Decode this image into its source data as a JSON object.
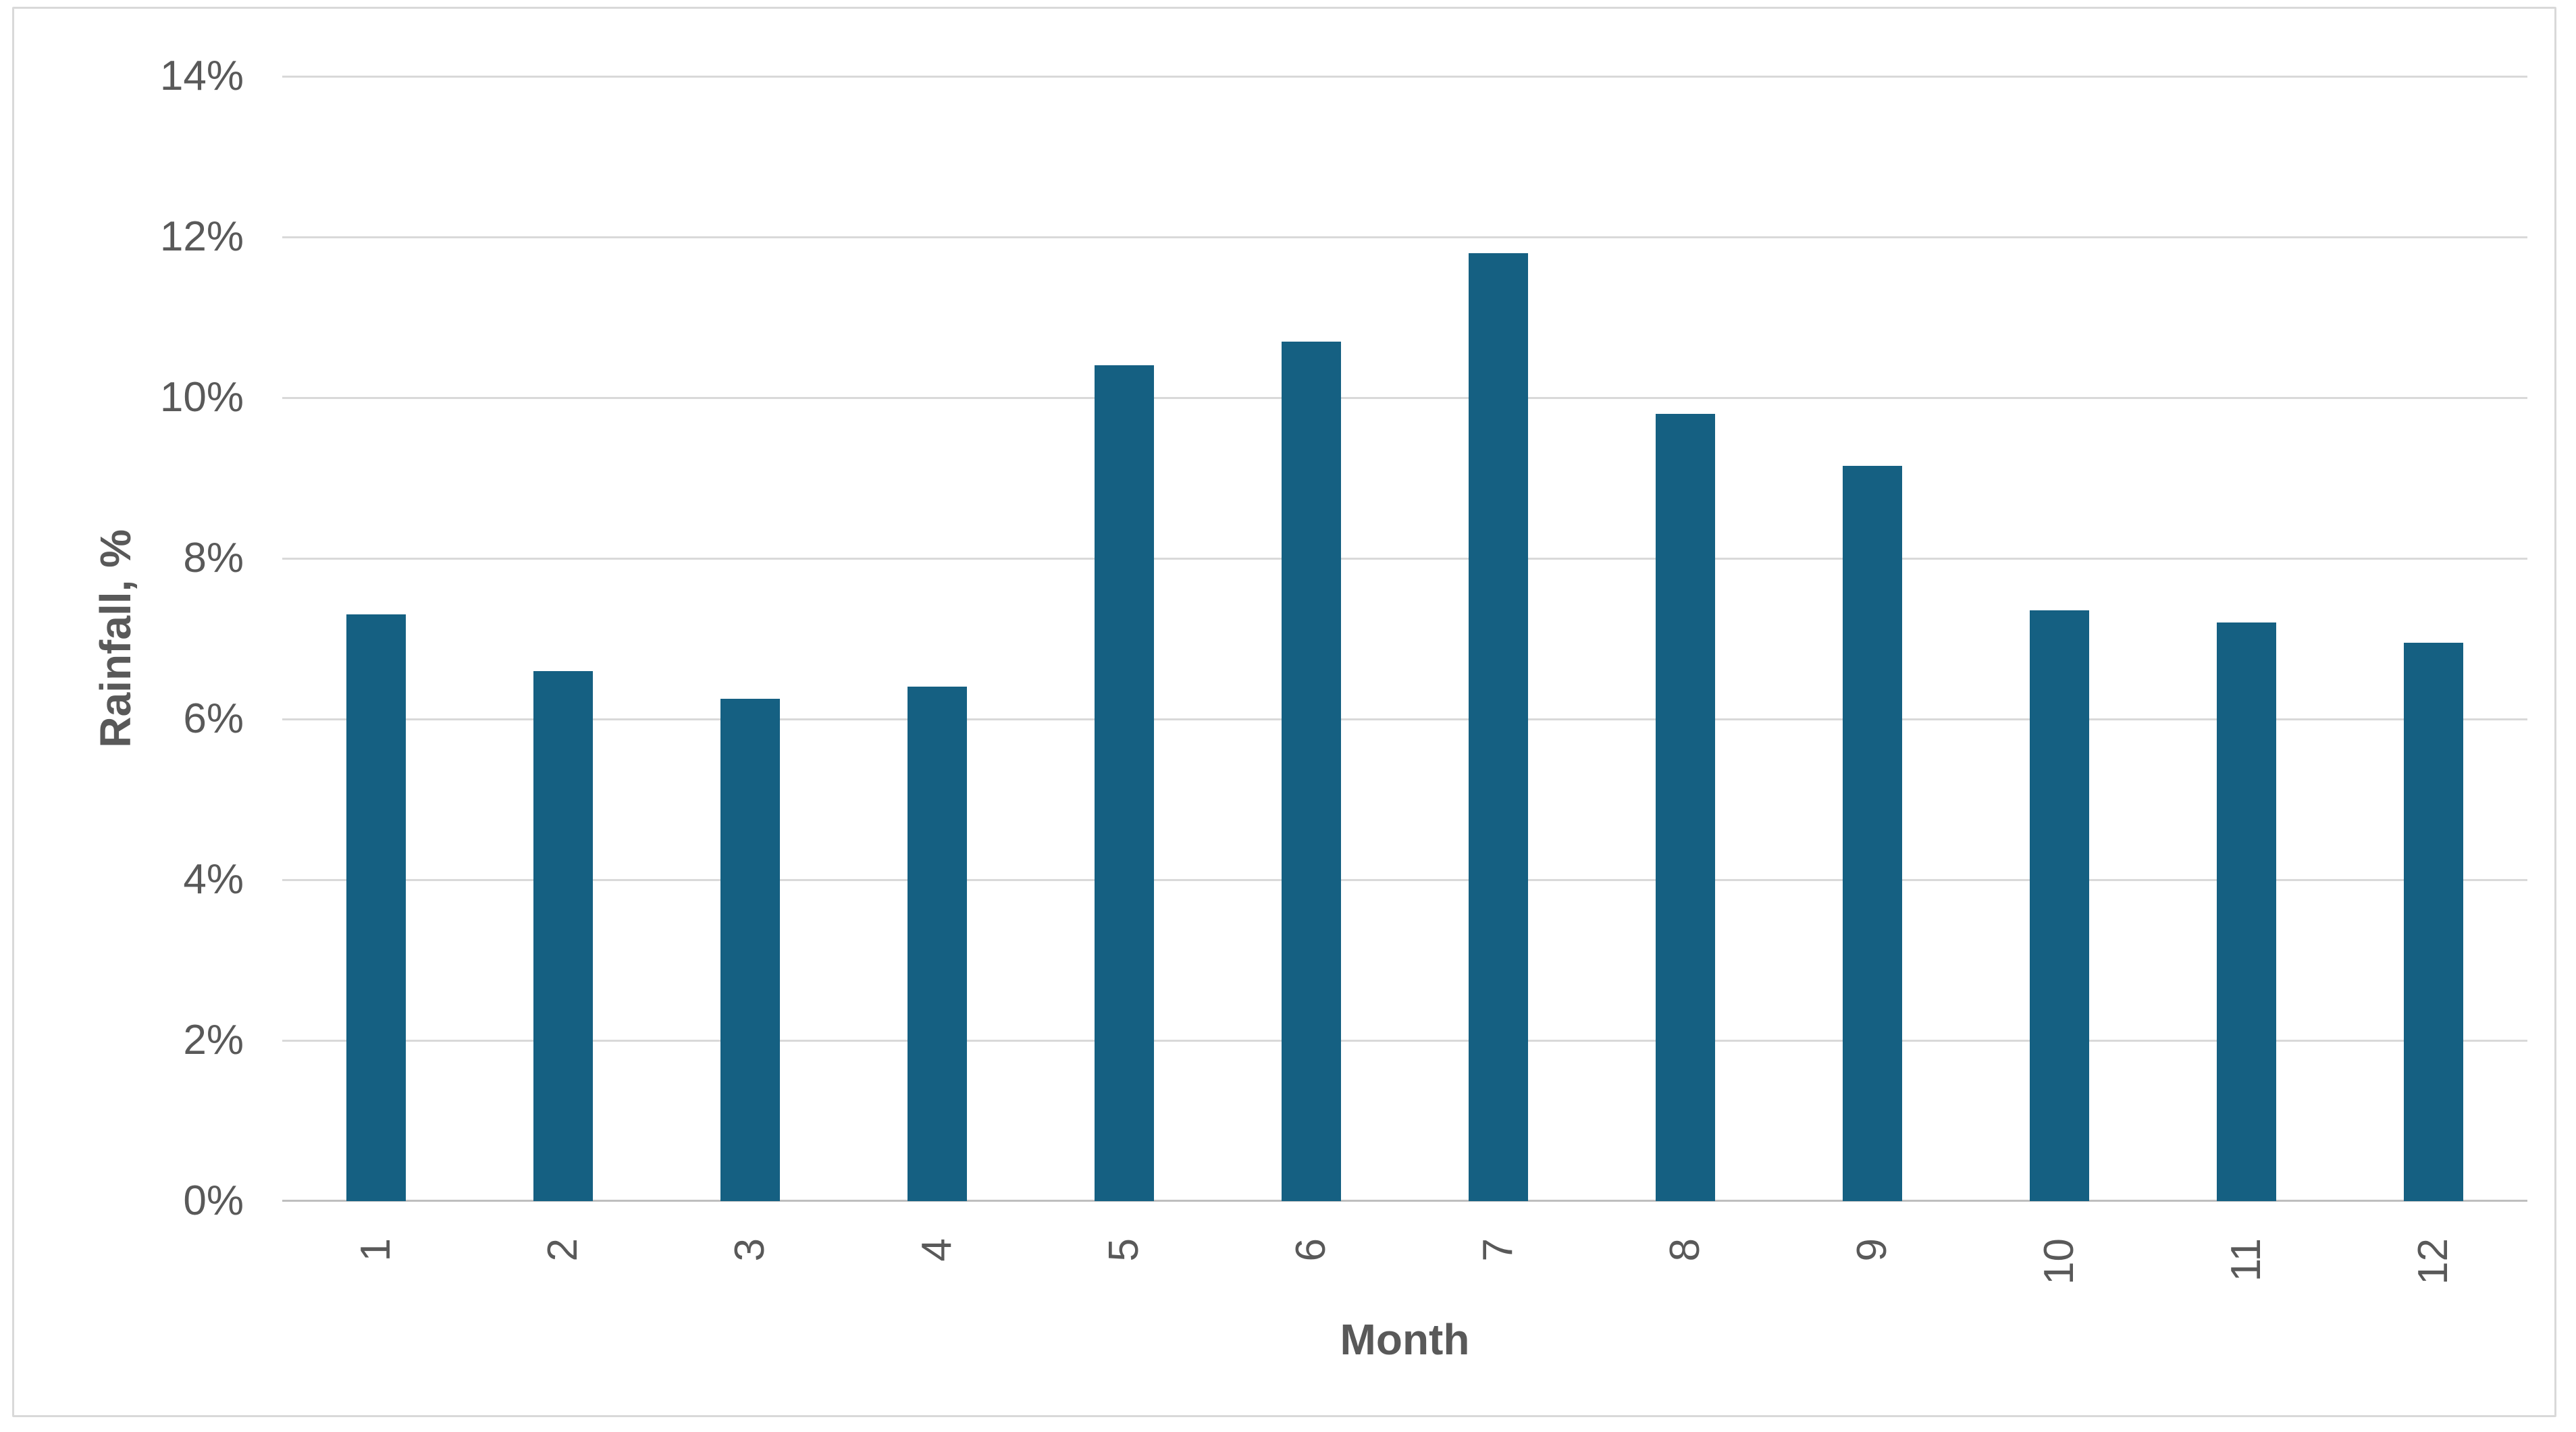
{
  "chart_data": {
    "type": "bar",
    "title": "",
    "xlabel": "Month",
    "ylabel": "Rainfall, %",
    "categories": [
      "1",
      "2",
      "3",
      "4",
      "5",
      "6",
      "7",
      "8",
      "9",
      "10",
      "11",
      "12"
    ],
    "values": [
      7.3,
      6.6,
      6.25,
      6.4,
      10.4,
      10.7,
      11.8,
      9.8,
      9.15,
      7.35,
      7.2,
      6.95
    ],
    "ylim": [
      0,
      14
    ],
    "ytick_step": 2,
    "ytick_labels": [
      "0%",
      "2%",
      "4%",
      "6%",
      "8%",
      "10%",
      "12%",
      "14%"
    ],
    "grid": true,
    "legend": false,
    "x_tick_label_rotation_deg": -90,
    "bar_unit": "percent"
  },
  "colors": {
    "bar": "#156082",
    "gridline": "#D9D9D9",
    "axis_line": "#BFBFBF",
    "text": "#595959",
    "frame_border": "#D9D9D9",
    "background": "#FFFFFF"
  }
}
